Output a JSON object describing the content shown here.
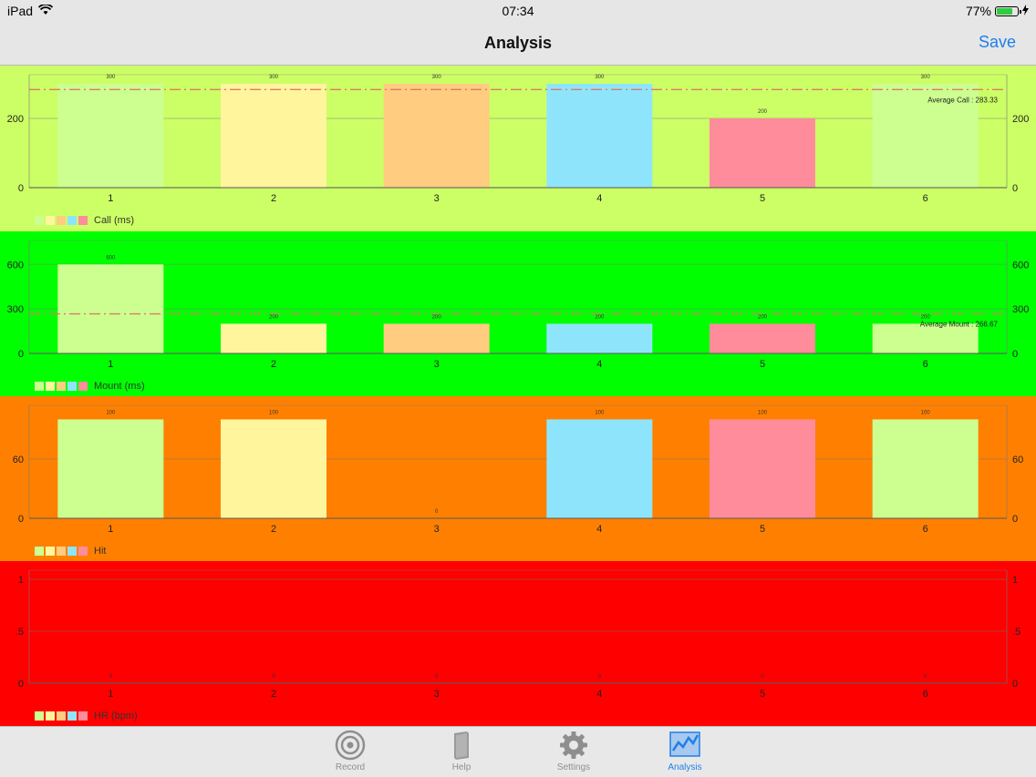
{
  "status": {
    "device": "iPad",
    "time": "07:34",
    "battery": "77%",
    "battery_level": 0.77
  },
  "nav": {
    "title": "Analysis",
    "save_label": "Save"
  },
  "series_colors": [
    "#ccff90",
    "#fff59d",
    "#ffcc80",
    "#8ee5fb",
    "#ff8c9a",
    "#ccff90"
  ],
  "legend_swatches": [
    "#ccff90",
    "#fff59d",
    "#ffcc80",
    "#8ee5fb",
    "#ff8c9a"
  ],
  "chart_data": [
    {
      "type": "bar",
      "background": "#ccff66",
      "categories": [
        "1",
        "2",
        "3",
        "4",
        "5",
        "6"
      ],
      "values": [
        300,
        300,
        300,
        300,
        200,
        300
      ],
      "value_labels": [
        "300",
        "300",
        "300",
        "300",
        "200",
        "300"
      ],
      "ylim": [
        0,
        300
      ],
      "yticks": [
        0,
        200
      ],
      "average": 283.33,
      "average_label": "Average Call : 283.33",
      "legend": "Call (ms)"
    },
    {
      "type": "bar",
      "background": "#00ff00",
      "categories": [
        "1",
        "2",
        "3",
        "4",
        "5",
        "6"
      ],
      "values": [
        600,
        200,
        200,
        200,
        200,
        200
      ],
      "value_labels": [
        "600",
        "200",
        "200",
        "200",
        "200",
        "200"
      ],
      "ylim": [
        0,
        700
      ],
      "yticks": [
        0,
        300,
        600
      ],
      "average": 266.67,
      "average_label": "Average Mount : 266.67",
      "legend": "Mount (ms)"
    },
    {
      "type": "bar",
      "background": "#ff8000",
      "categories": [
        "1",
        "2",
        "3",
        "4",
        "5",
        "6"
      ],
      "values": [
        100,
        100,
        0,
        100,
        100,
        100
      ],
      "value_labels": [
        "100",
        "100",
        "0",
        "100",
        "100",
        "100"
      ],
      "ylim": [
        0,
        105
      ],
      "yticks": [
        0,
        60
      ],
      "average": null,
      "average_label": "",
      "legend": "Hit"
    },
    {
      "type": "bar",
      "background": "#ff0000",
      "categories": [
        "1",
        "2",
        "3",
        "4",
        "5",
        "6"
      ],
      "values": [
        0,
        0,
        0,
        0,
        0,
        0
      ],
      "value_labels": [
        "0",
        "0",
        "0",
        "0",
        "0",
        "0"
      ],
      "ylim": [
        0,
        1
      ],
      "yticks": [
        0,
        0.5,
        1
      ],
      "ytick_labels": [
        "0",
        ".5",
        "1"
      ],
      "average": null,
      "average_label": "",
      "legend": "HR (bpm)"
    }
  ],
  "tabs": [
    {
      "label": "Record",
      "icon": "target-icon",
      "active": false
    },
    {
      "label": "Help",
      "icon": "book-icon",
      "active": false
    },
    {
      "label": "Settings",
      "icon": "gear-icon",
      "active": false
    },
    {
      "label": "Analysis",
      "icon": "chart-icon",
      "active": true
    }
  ]
}
